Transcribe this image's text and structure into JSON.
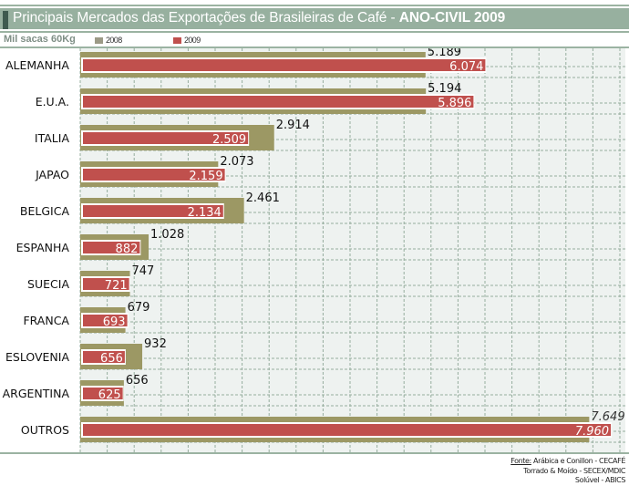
{
  "header": {
    "title_regular": "Principais Mercados das Exportações de Brasileiras de Café - ",
    "title_bold": "ANO-CIVIL 2009",
    "unit": "Mil sacas 60Kg"
  },
  "colors": {
    "series_2008": "#9c9864",
    "series_2009": "#c0504d",
    "plot_bg": "#eef2f0",
    "grid": "#96ad9e",
    "frame": "#9bb3a2"
  },
  "chart_data": {
    "type": "bar",
    "orientation": "horizontal",
    "title": "Principais Mercados das Exportações de Brasileiras de Café - ANO-CIVIL 2009",
    "xlabel": "Mil sacas 60Kg",
    "ylabel": "",
    "categories": [
      "ALEMANHA",
      "E.U.A.",
      "ITALIA",
      "JAPAO",
      "BELGICA",
      "ESPANHA",
      "SUECIA",
      "FRANCA",
      "ESLOVENIA",
      "ARGENTINA",
      "OUTROS"
    ],
    "series": [
      {
        "name": "2008",
        "values": [
          5189,
          5194,
          2914,
          2073,
          2461,
          1028,
          747,
          679,
          932,
          656,
          7649
        ],
        "labels": [
          "5.189",
          "5.194",
          "2.914",
          "2.073",
          "2.461",
          "1.028",
          "747",
          "679",
          "932",
          "656",
          "7.649"
        ]
      },
      {
        "name": "2009",
        "values": [
          6074,
          5896,
          2509,
          2159,
          2134,
          882,
          721,
          693,
          656,
          625,
          7960
        ],
        "labels": [
          "6.074",
          "5.896",
          "2.509",
          "2.159",
          "2.134",
          "882",
          "721",
          "693",
          "656",
          "625",
          "7.960"
        ]
      }
    ],
    "xlim": [
      0,
      8200
    ],
    "grid": true,
    "legend": "top-left"
  },
  "source": {
    "label": "Fonte:",
    "line1": " Arábica e Conillon - CECAFÉ",
    "line2": "Torrado & Moído - SECEX/MDIC",
    "line3": "Solúvel - ABICS"
  }
}
